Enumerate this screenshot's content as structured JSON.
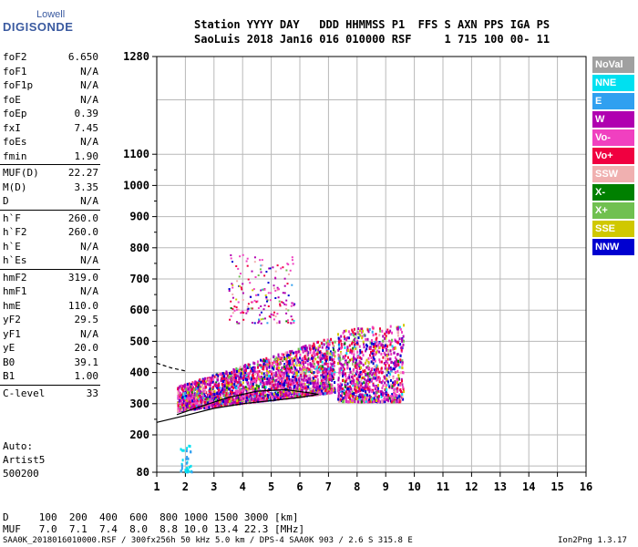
{
  "logo": {
    "line1": "Lowell",
    "line2": "DIGISONDE"
  },
  "header": {
    "line1": "Station YYYY DAY   DDD HHMMSS P1  FFS S AXN PPS IGA PS",
    "line2": "SaoLuis 2018 Jan16 016 010000 RSF     1 715 100 00- 11"
  },
  "parameters": [
    {
      "name": "foF2",
      "value": "6.650"
    },
    {
      "name": "foF1",
      "value": "N/A"
    },
    {
      "name": "foF1p",
      "value": "N/A"
    },
    {
      "name": "foE",
      "value": "N/A"
    },
    {
      "name": "foEp",
      "value": "0.39"
    },
    {
      "name": "fxI",
      "value": "7.45"
    },
    {
      "name": "foEs",
      "value": "N/A"
    },
    {
      "name": "fmin",
      "value": "1.90"
    },
    {
      "name": "MUF(D)",
      "value": "22.27",
      "sep": true
    },
    {
      "name": "M(D)",
      "value": "3.35"
    },
    {
      "name": "D",
      "value": "N/A"
    },
    {
      "name": "h`F",
      "value": "260.0",
      "sep": true
    },
    {
      "name": "h`F2",
      "value": "260.0"
    },
    {
      "name": "h`E",
      "value": "N/A"
    },
    {
      "name": "h`Es",
      "value": "N/A"
    },
    {
      "name": "hmF2",
      "value": "319.0",
      "sep": true
    },
    {
      "name": "hmF1",
      "value": "N/A"
    },
    {
      "name": "hmE",
      "value": "110.0"
    },
    {
      "name": "yF2",
      "value": "29.5"
    },
    {
      "name": "yF1",
      "value": "N/A"
    },
    {
      "name": "yE",
      "value": "20.0"
    },
    {
      "name": "B0",
      "value": "39.1"
    },
    {
      "name": "B1",
      "value": "1.00"
    },
    {
      "name": "C-level",
      "value": "33",
      "sep": true
    }
  ],
  "autoscaling": {
    "line1": "Auto:",
    "line2": "Artist5",
    "line3": "500200"
  },
  "dmuf_table": {
    "d_row": "D     100  200  400  600  800 1000 1500 3000 [km]",
    "muf_row": "MUF   7.0  7.1  7.4  8.0  8.8 10.0 13.4 22.3 [MHz]"
  },
  "footer": {
    "file": "SAA0K_2018016010000.RSF / 300fx256h 50 kHz 5.0 km / DPS-4 SAA0K 903 / 2.6 S 315.8 E",
    "version": "Ion2Png 1.3.17"
  },
  "legend": [
    {
      "label": "NoVal",
      "color": "#a0a0a0"
    },
    {
      "label": "NNE",
      "color": "#00e0f0"
    },
    {
      "label": "E",
      "color": "#30a0f0"
    },
    {
      "label": "W",
      "color": "#b000b0"
    },
    {
      "label": "Vo-",
      "color": "#f040c0"
    },
    {
      "label": "Vo+",
      "color": "#f00040"
    },
    {
      "label": "SSW",
      "color": "#f0b0b0"
    },
    {
      "label": "X-",
      "color": "#008000"
    },
    {
      "label": "X+",
      "color": "#70c050"
    },
    {
      "label": "SSE",
      "color": "#d0c800"
    },
    {
      "label": "NNW",
      "color": "#0000d0"
    }
  ],
  "chart_data": {
    "type": "scatter",
    "xlim": [
      1,
      16
    ],
    "ylim": [
      80,
      1280
    ],
    "x_ticks": [
      "1",
      "2",
      "3",
      "4",
      "5",
      "6",
      "7",
      "8",
      "9",
      "10",
      "11",
      "12",
      "13",
      "14",
      "15",
      "16"
    ],
    "y_ticks": [
      {
        "value": 80,
        "label": "80"
      },
      {
        "value": 200,
        "label": "200"
      },
      {
        "value": 300,
        "label": "300"
      },
      {
        "value": 400,
        "label": "400"
      },
      {
        "value": 500,
        "label": "500"
      },
      {
        "value": 600,
        "label": "600"
      },
      {
        "value": 700,
        "label": "700"
      },
      {
        "value": 800,
        "label": "800"
      },
      {
        "value": 900,
        "label": "900"
      },
      {
        "value": 1000,
        "label": "1000"
      },
      {
        "value": 1100,
        "label": "1100"
      },
      {
        "value": 1280,
        "label": "1280"
      }
    ],
    "grid": true,
    "echo_regions": [
      {
        "name": "F-trace",
        "x": [
          1.7,
          7.2
        ],
        "y_low": [
          280,
          340
        ],
        "y_high": [
          360,
          520
        ]
      },
      {
        "name": "F-spread-1",
        "x": [
          7.3,
          9.6
        ],
        "y_low": [
          310,
          310
        ],
        "y_high": [
          540,
          560
        ]
      },
      {
        "name": "F-high-echo",
        "x": [
          3.5,
          5.8
        ],
        "y_low": [
          560,
          560
        ],
        "y_high": [
          780,
          780
        ]
      },
      {
        "name": "low-echo",
        "x": [
          1.8,
          2.2
        ],
        "y_low": [
          85,
          85
        ],
        "y_high": [
          170,
          170
        ]
      }
    ],
    "profile_curves": [
      {
        "name": "lower-profile",
        "x": [
          1.0,
          2.0,
          3.0,
          4.0,
          5.0,
          6.0,
          6.65
        ],
        "y": [
          240,
          262,
          285,
          300,
          310,
          320,
          330
        ]
      },
      {
        "name": "upper-profile",
        "x": [
          1.7,
          2.5,
          3.5,
          4.5,
          5.5,
          6.3,
          6.65
        ],
        "y": [
          265,
          290,
          320,
          340,
          345,
          335,
          330
        ]
      },
      {
        "name": "dashed-profile",
        "x": [
          1.0,
          1.5,
          2.0
        ],
        "y": [
          430,
          415,
          405
        ]
      }
    ]
  }
}
